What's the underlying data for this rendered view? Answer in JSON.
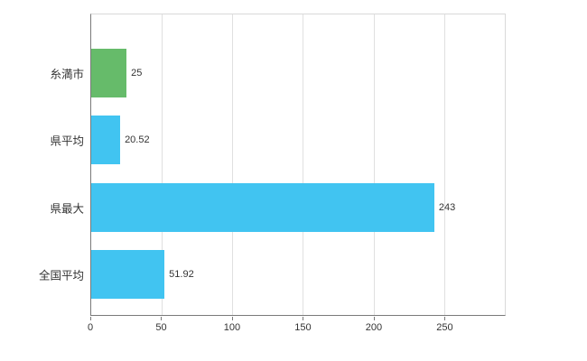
{
  "chart_data": {
    "type": "bar",
    "orientation": "horizontal",
    "title": "",
    "xlabel": "",
    "ylabel": "",
    "categories": [
      "糸満市",
      "県平均",
      "県最大",
      "全国平均"
    ],
    "values": [
      25,
      20.52,
      243,
      51.92
    ],
    "value_labels": [
      "25",
      "20.52",
      "243",
      "51.92"
    ],
    "bar_colors": [
      "#66bb6a",
      "#41c4f1",
      "#41c4f1",
      "#41c4f1"
    ],
    "xlim": [
      0,
      293
    ],
    "ticks": [
      0,
      50,
      100,
      150,
      200,
      250
    ],
    "tick_labels": [
      "0",
      "50",
      "100",
      "150",
      "200",
      "250"
    ],
    "grid": true,
    "legend": "none"
  },
  "colors": {
    "grid": "#e0e0e0",
    "axis": "#7a7a7a",
    "text": "#333333",
    "background": "#ffffff"
  }
}
